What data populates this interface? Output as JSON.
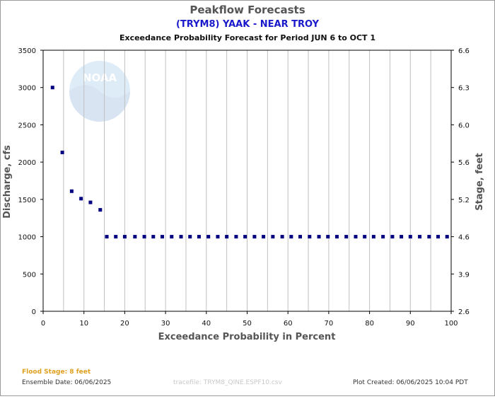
{
  "header": {
    "title": "Peakflow Forecasts",
    "subtitle": "(TRYM8) YAAK - NEAR TROY",
    "period": "Exceedance Probability Forecast for Period JUN 6 to OCT 1"
  },
  "footer": {
    "flood_stage": "Flood Stage: 8 feet",
    "ensemble_date": "Ensemble Date: 06/06/2025",
    "tracefile": "tracefile: TRYM8_QINE.ESPF10.csv",
    "plot_created": "Plot Created: 06/06/2025 10:04 PDT"
  },
  "colors": {
    "marker": "#000080",
    "grid": "#c0c0c0",
    "title_blue": "#1a1acc",
    "flood_stage": "#e0a020"
  },
  "logo": {
    "icon": "noaa-logo-watermark",
    "text": "NOAA"
  },
  "chart_data": {
    "type": "scatter",
    "title": "Peakflow Forecasts",
    "xlabel": "Exceedance Probability in Percent",
    "ylabel": "Discharge, cfs",
    "y2label": "Stage, feet",
    "xlim": [
      0,
      100
    ],
    "ylim": [
      0,
      3500
    ],
    "xticks": [
      "0",
      "10",
      "20",
      "30",
      "40",
      "50",
      "60",
      "70",
      "80",
      "90",
      "100"
    ],
    "yticks": [
      "0",
      "500",
      "1000",
      "1500",
      "2000",
      "2500",
      "3000",
      "3500"
    ],
    "y2ticks": [
      "2.6",
      "3.9",
      "4.6",
      "5.2",
      "5.6",
      "6.0",
      "6.3",
      "6.6"
    ],
    "grid": true,
    "x": [
      2.3,
      4.7,
      7.0,
      9.3,
      11.6,
      14.0,
      15.6,
      17.8,
      20.0,
      22.5,
      24.8,
      27.0,
      29.2,
      31.5,
      33.8,
      36.0,
      38.2,
      40.5,
      42.8,
      45.0,
      47.3,
      49.5,
      51.8,
      54.0,
      56.3,
      58.6,
      60.8,
      63.0,
      65.3,
      67.6,
      69.8,
      72.0,
      74.3,
      76.6,
      78.8,
      81.0,
      83.3,
      85.6,
      87.8,
      90.0,
      92.3,
      94.6,
      96.8,
      99.0
    ],
    "y": [
      3000,
      2130,
      1610,
      1510,
      1460,
      1360,
      1000,
      1000,
      1000,
      1000,
      1000,
      1000,
      1000,
      1000,
      1000,
      1000,
      1000,
      1000,
      1000,
      1000,
      1000,
      1000,
      1000,
      1000,
      1000,
      1000,
      1000,
      1000,
      1000,
      1000,
      1000,
      1000,
      1000,
      1000,
      1000,
      1000,
      1000,
      1000,
      1000,
      1000,
      1000,
      1000,
      1000,
      1000
    ]
  }
}
